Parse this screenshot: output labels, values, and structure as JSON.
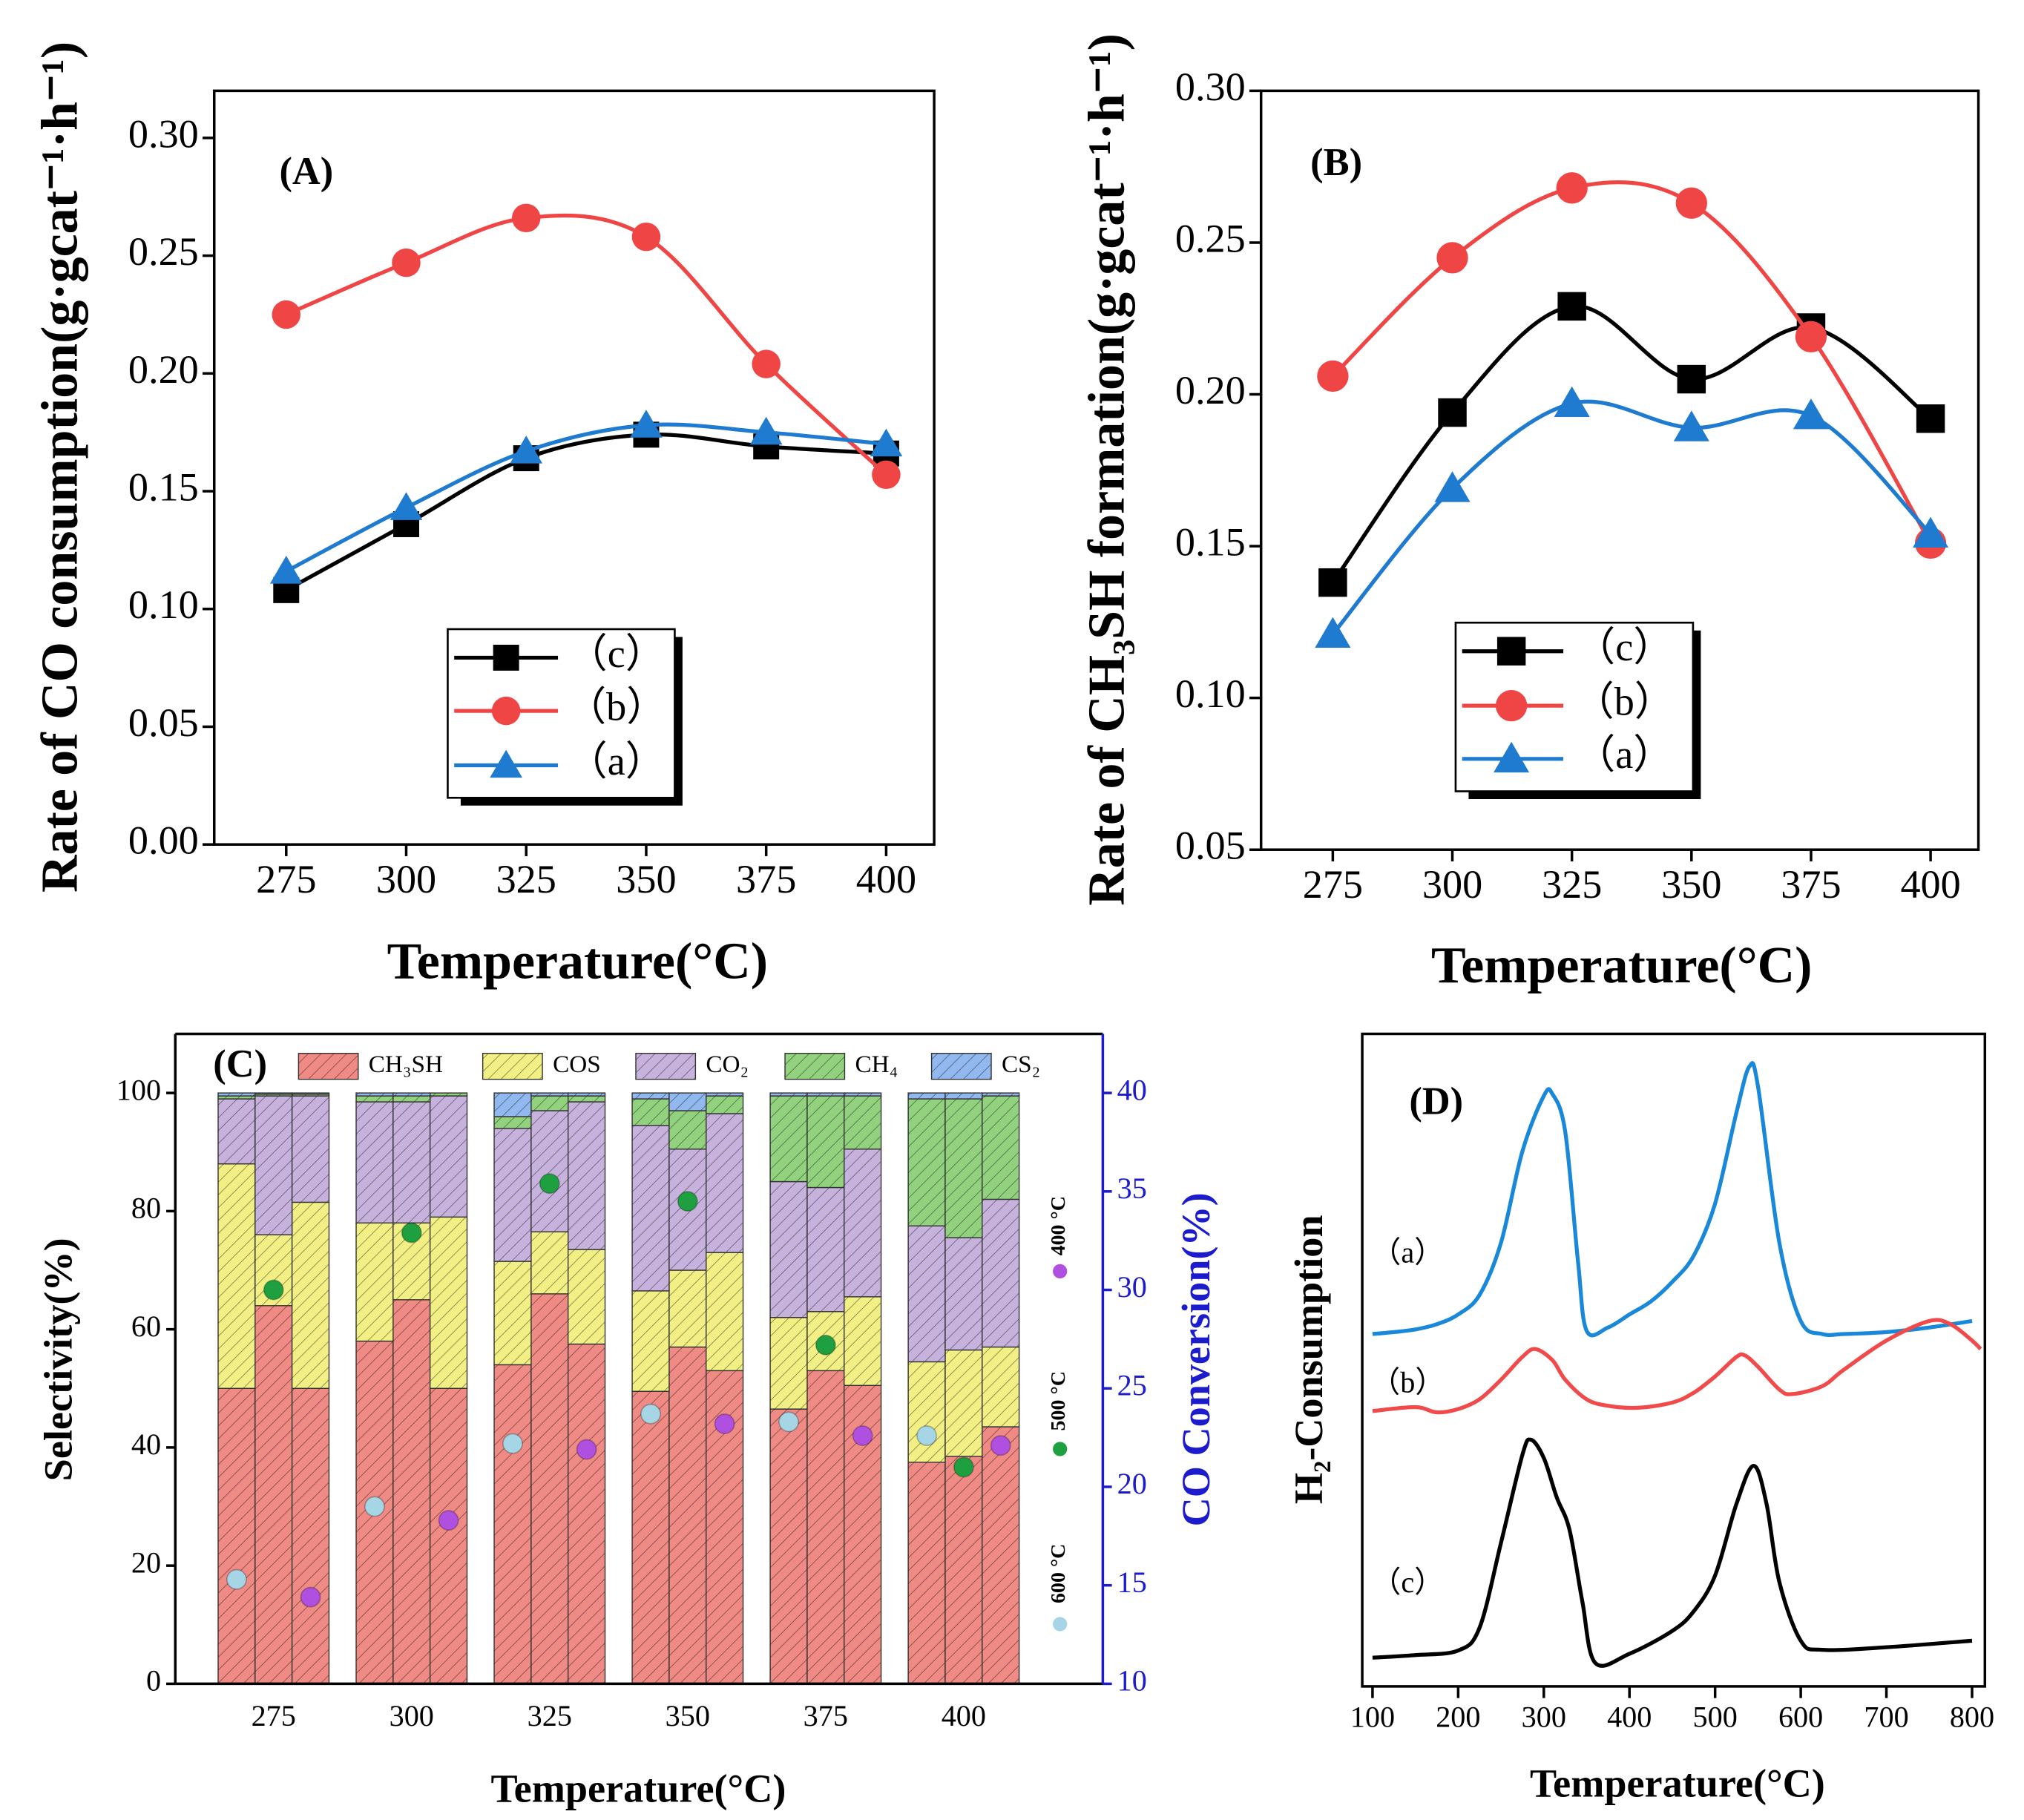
{
  "chart_data": [
    {
      "type": "line",
      "title": "(A)",
      "x_label": "Temperature(°C)",
      "y_label": "Rate of CO consumption(g·gcat⁻¹·h⁻¹)",
      "x": [
        275,
        300,
        325,
        350,
        375,
        400
      ],
      "xlim": [
        260,
        410
      ],
      "xticks": [
        275,
        300,
        325,
        350,
        375,
        400
      ],
      "ylim": [
        0,
        0.32
      ],
      "yticks": [
        {
          "value": 0,
          "label": "0.00"
        },
        {
          "value": 0.05,
          "label": "0.05"
        },
        {
          "value": 0.1,
          "label": "0.10"
        },
        {
          "value": 0.15,
          "label": "0.15"
        },
        {
          "value": 0.2,
          "label": "0.20"
        },
        {
          "value": 0.25,
          "label": "0.25"
        },
        {
          "value": 0.3,
          "label": "0.30"
        }
      ],
      "series": [
        {
          "name": "（c）",
          "color": "#000000",
          "marker": "square",
          "values": [
            0.108,
            0.136,
            0.164,
            0.174,
            0.169,
            0.166
          ]
        },
        {
          "name": "（b）",
          "color": "#f04545",
          "marker": "circle",
          "values": [
            0.225,
            0.247,
            0.266,
            0.258,
            0.204,
            0.157
          ]
        },
        {
          "name": "（a）",
          "color": "#1f7bd0",
          "marker": "triangle",
          "values": [
            0.116,
            0.143,
            0.167,
            0.178,
            0.175,
            0.17
          ]
        }
      ]
    },
    {
      "type": "line",
      "title": "(B)",
      "x_label": "Temperature(°C)",
      "y_label": "Rate of CH₃SH formation(g·gcat⁻¹·h⁻¹)",
      "x": [
        275,
        300,
        325,
        350,
        375,
        400
      ],
      "xlim": [
        260,
        410
      ],
      "xticks": [
        275,
        300,
        325,
        350,
        375,
        400
      ],
      "ylim": [
        0.05,
        0.3
      ],
      "yticks": [
        {
          "value": 0.05,
          "label": "0.05"
        },
        {
          "value": 0.1,
          "label": "0.10"
        },
        {
          "value": 0.15,
          "label": "0.15"
        },
        {
          "value": 0.2,
          "label": "0.20"
        },
        {
          "value": 0.25,
          "label": "0.25"
        },
        {
          "value": 0.3,
          "label": "0.30"
        }
      ],
      "series": [
        {
          "name": "（c）",
          "color": "#000000",
          "marker": "square",
          "values": [
            0.138,
            0.194,
            0.229,
            0.205,
            0.222,
            0.192
          ]
        },
        {
          "name": "（b）",
          "color": "#f04545",
          "marker": "circle",
          "values": [
            0.206,
            0.245,
            0.268,
            0.263,
            0.219,
            0.151
          ]
        },
        {
          "name": "（a）",
          "color": "#1f7bd0",
          "marker": "triangle",
          "values": [
            0.121,
            0.169,
            0.197,
            0.189,
            0.193,
            0.154
          ]
        }
      ]
    },
    {
      "type": "stacked_bar",
      "title": "(C)",
      "x_label": "Temperature(°C)",
      "y_label": "Selectivity(%)",
      "y2_label": "CO Conversion(%)",
      "categories": [
        null,
        "275",
        null,
        null,
        "300",
        null,
        null,
        "325",
        null,
        null,
        "350",
        null,
        null,
        "375",
        null,
        null,
        "400",
        null
      ],
      "ylim": [
        0,
        110
      ],
      "yticks": [
        0,
        20,
        40,
        60,
        80,
        100
      ],
      "y2lim": [
        10,
        43
      ],
      "y2ticks": [
        10,
        15,
        20,
        25,
        30,
        35,
        40
      ],
      "series": [
        {
          "name": "CH₃SH",
          "color": "#f08a84",
          "values": [
            50,
            64,
            50,
            58,
            65,
            50,
            54,
            66,
            57.5,
            49.5,
            57,
            53,
            46.5,
            53,
            50.5,
            37.5,
            38.5,
            43.5
          ]
        },
        {
          "name": "COS",
          "color": "#f2f084",
          "values": [
            38,
            12,
            31.5,
            20,
            13,
            29,
            17.5,
            10.5,
            16,
            17,
            13,
            20,
            15.5,
            10,
            15,
            17,
            18,
            13.5
          ]
        },
        {
          "name": "CO₂",
          "color": "#c6b2dc",
          "values": [
            11,
            23.5,
            18,
            20.5,
            20.5,
            20.5,
            22.5,
            20.5,
            25,
            28,
            20.5,
            23.5,
            23,
            21,
            25,
            23,
            19,
            25
          ]
        },
        {
          "name": "CH₄",
          "color": "#92d27e",
          "values": [
            0.5,
            0.3,
            0.3,
            1,
            1,
            0.5,
            2,
            2.5,
            1,
            4.5,
            6.5,
            3,
            14.5,
            15.5,
            9,
            21.5,
            23.5,
            17.5
          ]
        },
        {
          "name": "CS₂",
          "color": "#92b8f0",
          "values": [
            0.5,
            0.2,
            0.2,
            0.5,
            0.5,
            0,
            4,
            0.5,
            0.5,
            1,
            3,
            0.5,
            0.5,
            0.5,
            0.5,
            1,
            1,
            0.5
          ]
        },
        {
          "name": "400 °C",
          "color": "#b050e0",
          "axis": "y2",
          "values": [
            null,
            null,
            14.4,
            null,
            null,
            18.3,
            null,
            null,
            21.9,
            null,
            null,
            23.2,
            null,
            null,
            22.6,
            null,
            null,
            22.1
          ]
        },
        {
          "name": "500 °C",
          "color": "#1fa040",
          "axis": "y2",
          "values": [
            null,
            30.0,
            null,
            null,
            32.9,
            null,
            null,
            35.4,
            null,
            null,
            34.5,
            null,
            null,
            27.2,
            null,
            null,
            21.0,
            null
          ]
        },
        {
          "name": "600 °C",
          "color": "#a6d6e6",
          "axis": "y2",
          "values": [
            15.3,
            null,
            null,
            19.0,
            null,
            null,
            22.2,
            null,
            null,
            23.7,
            null,
            null,
            23.3,
            null,
            null,
            22.6,
            null,
            null
          ]
        }
      ]
    },
    {
      "type": "line",
      "title": "(D)",
      "x_label": "Temperature(°C)",
      "y_label": "H₂-Consumption",
      "xlim": [
        88,
        815
      ],
      "xticks": [
        100,
        200,
        300,
        400,
        500,
        600,
        700,
        800
      ],
      "ylim": [
        0,
        100
      ],
      "series": [
        {
          "name": "（a）",
          "color": "#1a88d8",
          "x": [
            100,
            125,
            150,
            175,
            200,
            225,
            250,
            275,
            300,
            310,
            325,
            340,
            350,
            375,
            400,
            425,
            450,
            475,
            500,
            525,
            540,
            550,
            575,
            600,
            625,
            650,
            700,
            750,
            800
          ],
          "values": [
            54,
            54.3,
            54.7,
            55.5,
            57,
            60,
            68,
            82,
            90.5,
            90.8,
            85,
            65,
            54.5,
            55,
            57,
            59,
            62,
            66,
            74,
            88,
            95,
            92,
            68,
            56,
            54,
            54,
            54.3,
            55,
            56
          ]
        },
        {
          "name": "（b）",
          "color": "#f04a4a",
          "x": [
            100,
            150,
            175,
            200,
            225,
            250,
            275,
            290,
            310,
            325,
            350,
            375,
            410,
            450,
            475,
            500,
            525,
            535,
            550,
            575,
            590,
            625,
            650,
            700,
            750,
            775,
            800,
            810
          ],
          "values": [
            42.2,
            42.8,
            42,
            42.5,
            44,
            47,
            50.5,
            51.7,
            50,
            47,
            44,
            43,
            42.7,
            43.5,
            45,
            47.5,
            50.5,
            50.7,
            49,
            45.5,
            44.8,
            46,
            48.5,
            53,
            56,
            55.5,
            53,
            51.7
          ]
        },
        {
          "name": "（c）",
          "color": "#000000",
          "x": [
            100,
            150,
            200,
            225,
            250,
            275,
            285,
            300,
            315,
            330,
            345,
            360,
            400,
            450,
            475,
            500,
            525,
            545,
            560,
            575,
            600,
            625,
            700,
            800
          ],
          "values": [
            4.4,
            4.8,
            5.5,
            9,
            22,
            35.5,
            37.8,
            35,
            29,
            24,
            13,
            3.6,
            5,
            8.5,
            11.5,
            17,
            28,
            33.8,
            28,
            16,
            7,
            5.6,
            6,
            7
          ]
        }
      ]
    }
  ]
}
